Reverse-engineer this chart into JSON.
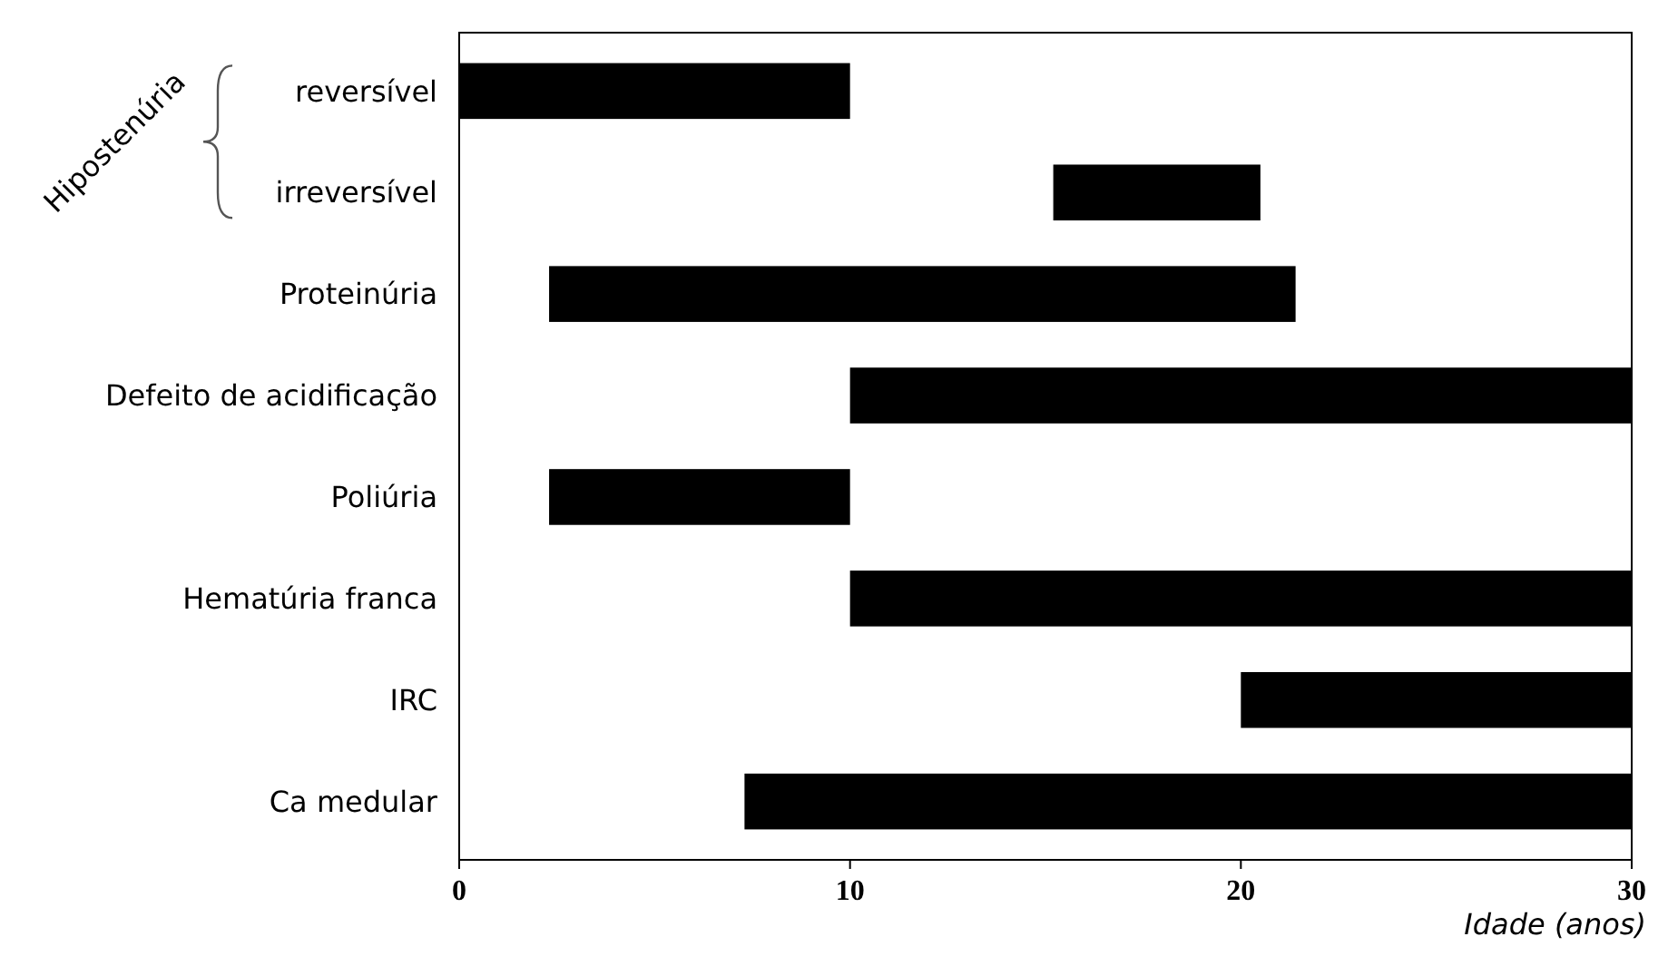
{
  "chart_data": {
    "type": "bar",
    "orientation": "horizontal",
    "xlabel": "Idade (anos)",
    "categories": [
      "reversível",
      "irreversível",
      "Proteinúria",
      "Defeito de acidificação",
      "Poliúria",
      "Hematúria franca",
      "IRC",
      "Ca medular"
    ],
    "base": [
      0,
      15.2,
      2.3,
      10,
      2.3,
      10,
      20,
      7.3
    ],
    "values": [
      10,
      5.3,
      19.1,
      20,
      7.7,
      20,
      10,
      22.7
    ],
    "color": "#000000",
    "xlim": [
      0,
      30
    ],
    "xticks": [
      0,
      10,
      20,
      30
    ],
    "annotations": [
      "Hipostenúria"
    ],
    "grid": false
  }
}
